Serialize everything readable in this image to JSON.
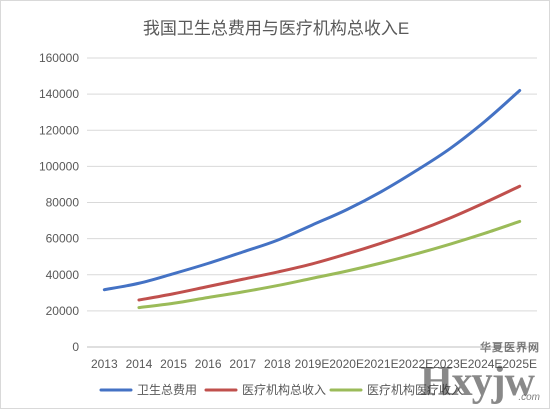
{
  "chart_data": {
    "type": "line",
    "title": "我国卫生总费用与医疗机构总收入E",
    "xlabel": "",
    "ylabel": "",
    "categories": [
      "2013",
      "2014",
      "2015",
      "2016",
      "2017",
      "2018",
      "2019E",
      "2020E",
      "2021E",
      "2022E",
      "2023E",
      "2024E",
      "2025E"
    ],
    "ylim": [
      0,
      160000
    ],
    "yticks": [
      0,
      20000,
      40000,
      60000,
      80000,
      100000,
      120000,
      140000,
      160000
    ],
    "grid": true,
    "legend_position": "bottom",
    "series": [
      {
        "name": "卫生总费用",
        "color": "#4472C4",
        "values": [
          31700,
          35300,
          40600,
          46300,
          52600,
          59100,
          67500,
          76000,
          86000,
          97500,
          110000,
          125000,
          142000
        ]
      },
      {
        "name": "医疗机构总收入",
        "color": "#C0504D",
        "values": [
          null,
          26000,
          29500,
          33500,
          37500,
          41500,
          46000,
          51500,
          57500,
          64000,
          71500,
          80000,
          89000
        ]
      },
      {
        "name": "医疗机构医疗收入",
        "color": "#9BBB59",
        "values": [
          null,
          21800,
          24200,
          27400,
          30500,
          34000,
          38000,
          42000,
          46500,
          51500,
          57000,
          63000,
          69500
        ]
      }
    ]
  },
  "watermark": {
    "brand": "Hxyjw",
    "tagline": "华夏医界网",
    "domain": ".com"
  }
}
